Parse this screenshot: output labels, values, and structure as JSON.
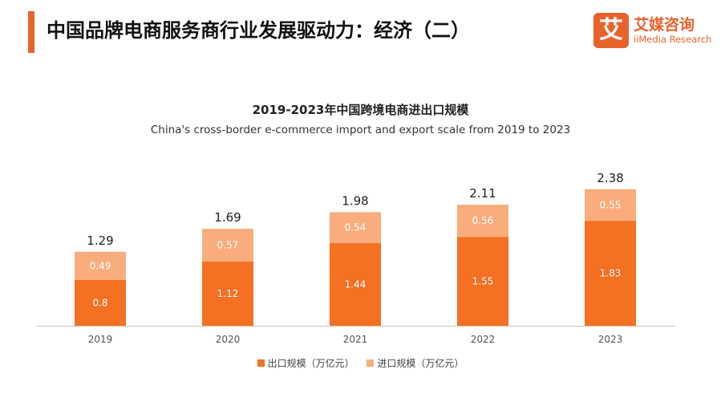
{
  "header": {
    "title": "中国品牌电商服务商行业发展驱动力：经济（二）",
    "accent_color": "#e8622c"
  },
  "logo": {
    "mark": "艾",
    "name_cn": "艾媒咨询",
    "name_en": "iiMedia Research",
    "color": "#e8622c"
  },
  "chart_data": {
    "type": "bar",
    "stacked": true,
    "title": "2019-2023年中国跨境电商进出口规模",
    "subtitle": "China's cross-border e-commerce import and export scale from 2019 to 2023",
    "categories": [
      "2019",
      "2020",
      "2021",
      "2022",
      "2023"
    ],
    "series": [
      {
        "name": "出口规模（万亿元）",
        "values": [
          0.8,
          1.12,
          1.44,
          1.55,
          1.83
        ],
        "color": "#f47022"
      },
      {
        "name": "进口规模（万亿元）",
        "values": [
          0.49,
          0.57,
          0.54,
          0.56,
          0.55
        ],
        "color": "#f9ad7c"
      }
    ],
    "totals": [
      1.29,
      1.69,
      1.98,
      2.11,
      2.38
    ],
    "ylim": [
      0,
      2.5
    ],
    "grid": false,
    "legend": "bottom",
    "xlabel": "",
    "ylabel": ""
  }
}
